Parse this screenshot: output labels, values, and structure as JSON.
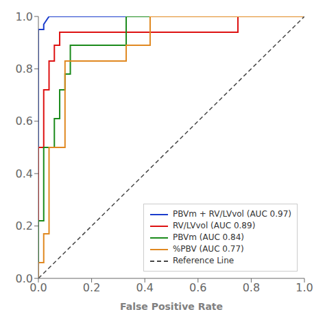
{
  "chart_data": {
    "type": "line",
    "xlabel": "False Positive Rate",
    "xlim": [
      0.0,
      1.0
    ],
    "ylim": [
      0.0,
      1.0
    ],
    "xticks": [
      {
        "value": 0,
        "label": "0.0"
      },
      0.2,
      0.4,
      0.6,
      0.8,
      {
        "value": 1,
        "label": "1.0"
      }
    ],
    "yticks": [
      {
        "value": 0,
        "label": "0.0"
      },
      0.2,
      0.4,
      0.6,
      0.8,
      {
        "value": 1,
        "label": "1.0"
      }
    ],
    "grid": false,
    "legend": "lower right",
    "series": [
      {
        "name": "PBVm + RV/LVvol (AUC 0.97)",
        "color": "#1a3ccc",
        "line_style": "solid",
        "x": [
          0.0,
          0.0,
          0.02,
          0.02,
          0.04,
          1.0
        ],
        "values": [
          0.0,
          0.95,
          0.95,
          0.97,
          1.0,
          1.0
        ]
      },
      {
        "name": "RV/LVvol (AUC 0.89)",
        "color": "#dd1111",
        "line_style": "solid",
        "x": [
          0.0,
          0.0,
          0.02,
          0.02,
          0.04,
          0.04,
          0.06,
          0.06,
          0.08,
          0.08,
          0.75,
          0.75,
          1.0
        ],
        "values": [
          0.0,
          0.5,
          0.5,
          0.72,
          0.72,
          0.83,
          0.83,
          0.89,
          0.89,
          0.94,
          0.94,
          1.0,
          1.0
        ]
      },
      {
        "name": "PBVm (AUC 0.84)",
        "color": "#1a8a1a",
        "line_style": "solid",
        "x": [
          0.0,
          0.0,
          0.02,
          0.02,
          0.06,
          0.06,
          0.08,
          0.08,
          0.1,
          0.1,
          0.12,
          0.12,
          0.33,
          0.33,
          1.0
        ],
        "values": [
          0.0,
          0.22,
          0.22,
          0.5,
          0.5,
          0.61,
          0.61,
          0.72,
          0.72,
          0.78,
          0.78,
          0.89,
          0.89,
          1.0,
          1.0
        ]
      },
      {
        "name": "%PBV (AUC 0.77)",
        "color": "#e08820",
        "line_style": "solid",
        "x": [
          0.0,
          0.0,
          0.02,
          0.02,
          0.04,
          0.04,
          0.1,
          0.1,
          0.33,
          0.33,
          0.42,
          0.42,
          1.0
        ],
        "values": [
          0.0,
          0.06,
          0.06,
          0.17,
          0.17,
          0.5,
          0.5,
          0.83,
          0.83,
          0.89,
          0.89,
          1.0,
          1.0
        ]
      },
      {
        "name": "Reference Line",
        "color": "#444444",
        "line_style": "dashed",
        "x": [
          0,
          1
        ],
        "values": [
          0,
          1
        ]
      }
    ]
  }
}
